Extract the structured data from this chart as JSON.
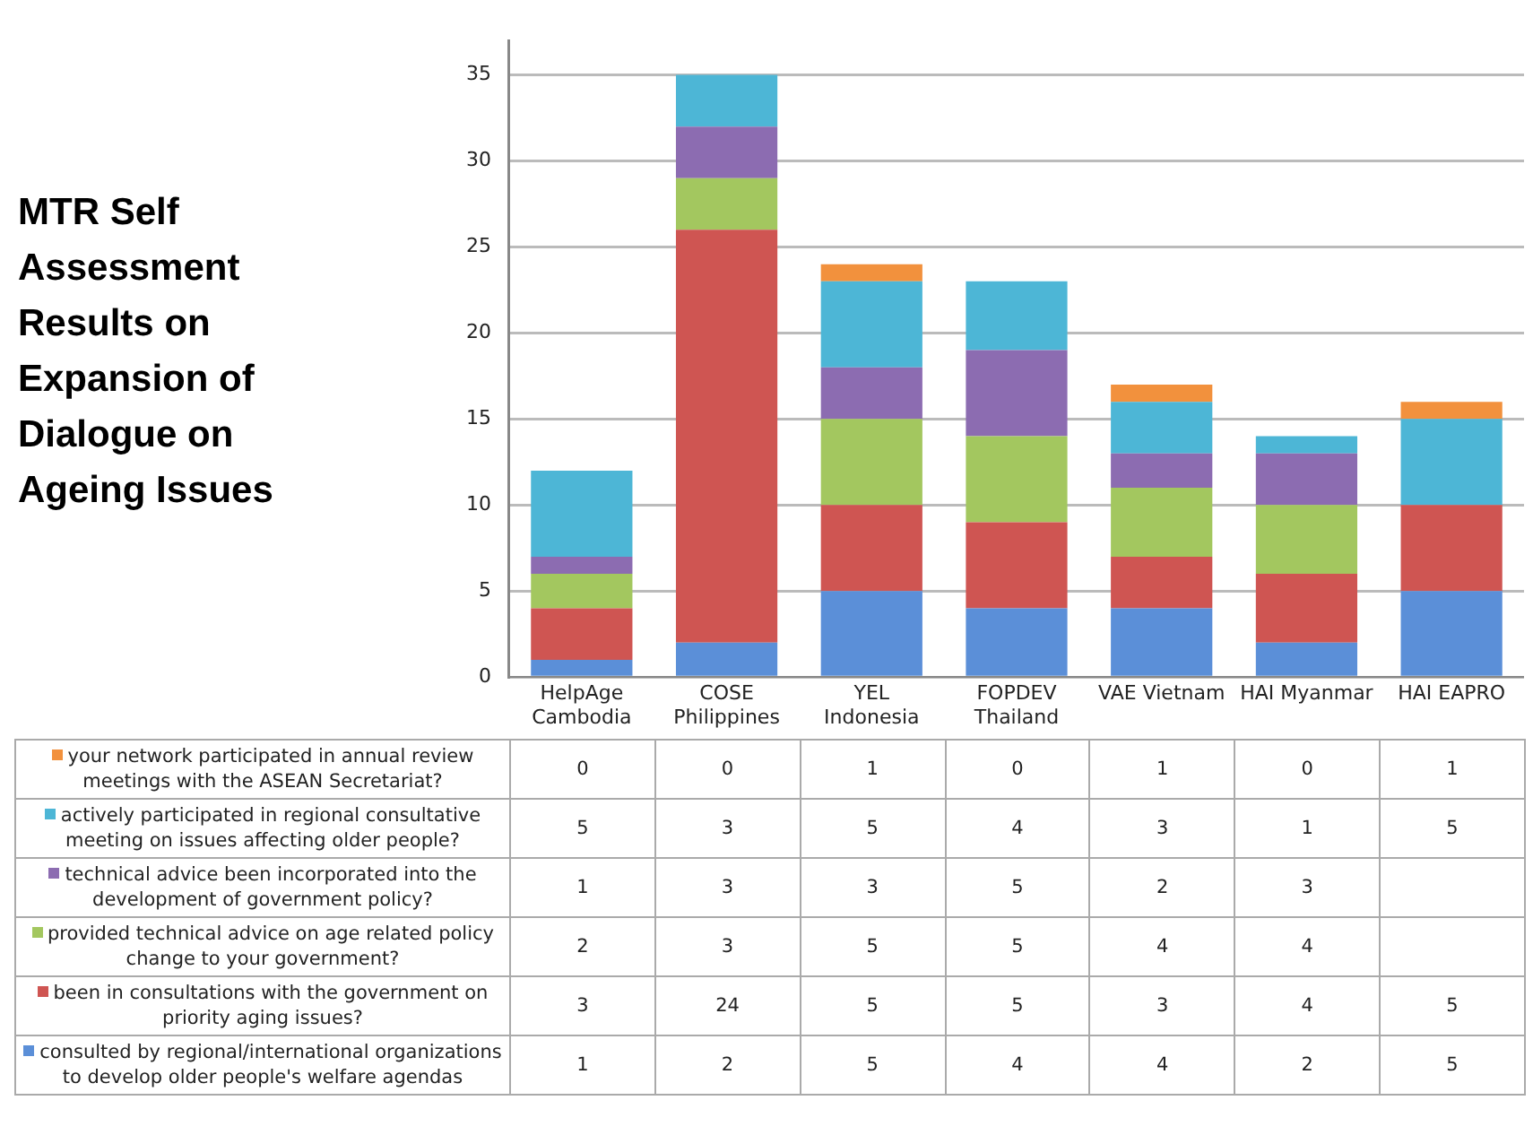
{
  "chart_data": {
    "type": "bar",
    "title": "MTR Self Assessment Results on Expansion of Dialogue on Ageing Issues",
    "categories": [
      "HelpAge Cambodia",
      "COSE Philippines",
      "YEL Indonesia",
      "FOPDEV Thailand",
      "VAE Vietnam",
      "HAI Myanmar",
      "HAI EAPRO"
    ],
    "stacked": true,
    "ylim": [
      0,
      37
    ],
    "yticks": [
      0,
      5,
      10,
      15,
      20,
      25,
      30,
      35
    ],
    "grid": "y",
    "data_labels": true,
    "legend": "bottom",
    "series": [
      {
        "name": "consulted by regional/international organizations to develop older people's welfare agendas",
        "color": "#5b8fd8",
        "values": [
          1,
          2,
          5,
          4,
          4,
          2,
          5
        ]
      },
      {
        "name": "been in consultations with the government on priority aging issues?",
        "color": "#cf5552",
        "values": [
          3,
          24,
          5,
          5,
          3,
          4,
          5
        ]
      },
      {
        "name": "provided technical advice on age related policy change to your government?",
        "color": "#a3c75f",
        "values": [
          2,
          3,
          5,
          5,
          4,
          4,
          null
        ]
      },
      {
        "name": "technical advice been incorporated into the development of government policy?",
        "color": "#8c6cb1",
        "values": [
          1,
          3,
          3,
          5,
          2,
          3,
          null
        ]
      },
      {
        "name": "actively participated in regional consultative meeting on issues affecting older people?",
        "color": "#4db6d6",
        "values": [
          5,
          3,
          5,
          4,
          3,
          1,
          5
        ]
      },
      {
        "name": "your network participated in annual review meetings with the ASEAN Secretariat?",
        "color": "#f2913d",
        "values": [
          0,
          0,
          1,
          0,
          1,
          0,
          1
        ]
      }
    ]
  }
}
